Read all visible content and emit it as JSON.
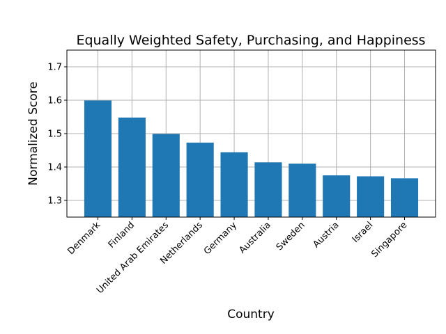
{
  "chart_data": {
    "type": "bar",
    "title": "Equally Weighted Safety, Purchasing, and Happiness",
    "xlabel": "Country",
    "ylabel": "Normalized Score",
    "categories": [
      "Denmark",
      "Finland",
      "United Arab Emirates",
      "Netherlands",
      "Germany",
      "Australia",
      "Sweden",
      "Austria",
      "Israel",
      "Singapore"
    ],
    "values": [
      1.599,
      1.548,
      1.499,
      1.473,
      1.444,
      1.414,
      1.41,
      1.375,
      1.372,
      1.366
    ],
    "ylim": [
      1.25,
      1.75
    ],
    "yticks": [
      1.3,
      1.4,
      1.5,
      1.6,
      1.7
    ],
    "ytick_labels": [
      "1.3",
      "1.4",
      "1.5",
      "1.6",
      "1.7"
    ],
    "grid": true,
    "bar_color": "#1f77b4",
    "grid_color": "#b0b0b0"
  }
}
